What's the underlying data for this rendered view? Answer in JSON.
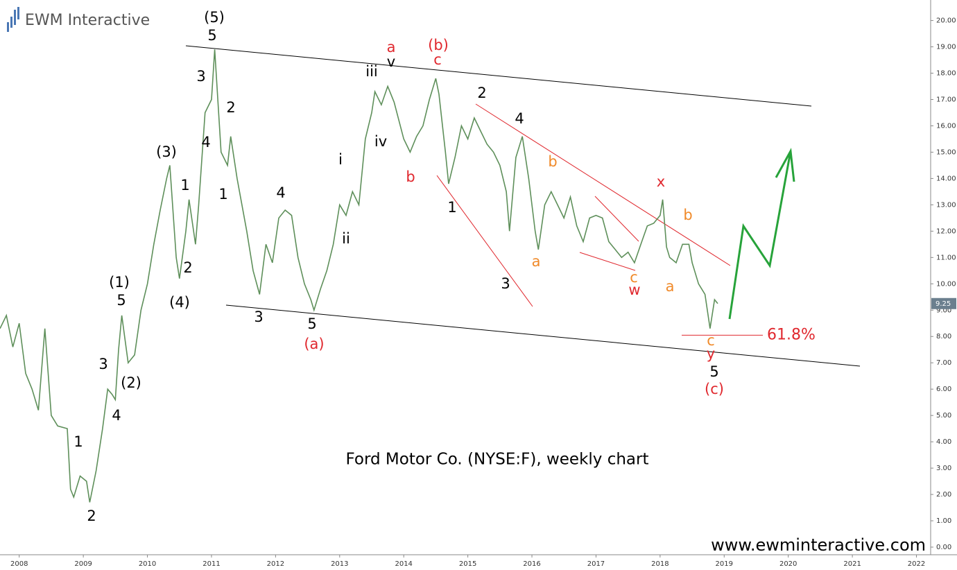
{
  "logo": "EWM Interactive",
  "chart_data": {
    "type": "line",
    "caption": "Ford Motor Co. (NYSE:F), weekly chart",
    "url": "www.ewminteractive.com",
    "x": [
      2007.7,
      2007.8,
      2007.9,
      2008.0,
      2008.1,
      2008.2,
      2008.3,
      2008.4,
      2008.5,
      2008.6,
      2008.75,
      2008.8,
      2008.85,
      2008.95,
      2009.05,
      2009.1,
      2009.2,
      2009.3,
      2009.38,
      2009.45,
      2009.5,
      2009.55,
      2009.6,
      2009.7,
      2009.8,
      2009.9,
      2010.0,
      2010.1,
      2010.2,
      2010.3,
      2010.35,
      2010.45,
      2010.5,
      2010.6,
      2010.65,
      2010.75,
      2010.8,
      2010.9,
      2011.0,
      2011.05,
      2011.15,
      2011.25,
      2011.3,
      2011.4,
      2011.55,
      2011.65,
      2011.75,
      2011.85,
      2011.95,
      2012.05,
      2012.15,
      2012.25,
      2012.35,
      2012.45,
      2012.55,
      2012.6,
      2012.7,
      2012.8,
      2012.9,
      2013.0,
      2013.1,
      2013.2,
      2013.3,
      2013.4,
      2013.5,
      2013.55,
      2013.65,
      2013.75,
      2013.85,
      2014.0,
      2014.1,
      2014.2,
      2014.3,
      2014.4,
      2014.5,
      2014.55,
      2014.65,
      2014.7,
      2014.8,
      2014.9,
      2015.0,
      2015.1,
      2015.2,
      2015.3,
      2015.4,
      2015.5,
      2015.6,
      2015.65,
      2015.75,
      2015.85,
      2015.95,
      2016.05,
      2016.1,
      2016.2,
      2016.3,
      2016.4,
      2016.5,
      2016.6,
      2016.7,
      2016.8,
      2016.9,
      2017.0,
      2017.1,
      2017.2,
      2017.3,
      2017.4,
      2017.5,
      2017.6,
      2017.7,
      2017.8,
      2017.9,
      2018.0,
      2018.04,
      2018.1,
      2018.15,
      2018.25,
      2018.35,
      2018.45,
      2018.5,
      2018.6,
      2018.7,
      2018.78,
      2018.85,
      2018.9
    ],
    "series": [
      {
        "name": "F",
        "color": "#5e8f5a",
        "values": [
          8.3,
          8.8,
          7.6,
          8.5,
          6.6,
          6.0,
          5.2,
          8.3,
          5.0,
          4.6,
          4.5,
          2.2,
          1.9,
          2.7,
          2.5,
          1.7,
          2.9,
          4.5,
          6.0,
          5.8,
          5.6,
          7.5,
          8.8,
          7.0,
          7.3,
          9.0,
          10.0,
          11.5,
          12.8,
          14.0,
          14.5,
          11.0,
          10.2,
          12.0,
          13.2,
          11.5,
          13.0,
          16.5,
          17.0,
          18.9,
          15.0,
          14.5,
          15.6,
          14.0,
          12.0,
          10.5,
          9.6,
          11.5,
          10.8,
          12.5,
          12.8,
          12.6,
          11.0,
          10.0,
          9.4,
          9.0,
          9.8,
          10.5,
          11.5,
          13.0,
          12.6,
          13.5,
          13.0,
          15.5,
          16.5,
          17.3,
          16.8,
          17.5,
          16.9,
          15.5,
          15.0,
          15.6,
          16.0,
          17.0,
          17.8,
          17.2,
          15.0,
          13.8,
          14.8,
          16.0,
          15.5,
          16.3,
          15.8,
          15.3,
          15.0,
          14.5,
          13.5,
          12.0,
          14.8,
          15.6,
          14.0,
          12.0,
          11.3,
          13.0,
          13.5,
          13.0,
          12.5,
          13.3,
          12.2,
          11.6,
          12.5,
          12.6,
          12.5,
          11.6,
          11.3,
          11.0,
          11.2,
          10.8,
          11.5,
          12.2,
          12.3,
          12.6,
          13.2,
          11.4,
          11.0,
          10.8,
          11.5,
          11.5,
          10.8,
          10.0,
          9.6,
          8.3,
          9.4,
          9.25
        ]
      }
    ],
    "last_price": 9.25,
    "fib_level": 8.05,
    "fib_label": "61.8%",
    "xlim": [
      2007.7,
      2022.2
    ],
    "xticks": [
      2008,
      2009,
      2010,
      2011,
      2012,
      2013,
      2014,
      2015,
      2016,
      2017,
      2018,
      2019,
      2020,
      2021,
      2022
    ],
    "ylim": [
      0,
      20.7
    ],
    "yticks": [
      {
        "value": 0,
        "label": "0.00"
      },
      {
        "value": 1,
        "label": "1.00"
      },
      {
        "value": 2,
        "label": "2.00"
      },
      {
        "value": 3,
        "label": "3.00"
      },
      {
        "value": 4,
        "label": "4.00"
      },
      {
        "value": 5,
        "label": "5.00"
      },
      {
        "value": 6,
        "label": "6.00"
      },
      {
        "value": 7,
        "label": "7.00"
      },
      {
        "value": 8,
        "label": "8.00"
      },
      {
        "value": 9,
        "label": "9.00"
      },
      {
        "value": 10,
        "label": "10.00"
      },
      {
        "value": 11,
        "label": "11.00"
      },
      {
        "value": 12,
        "label": "12.00"
      },
      {
        "value": 13,
        "label": "13.00"
      },
      {
        "value": 14,
        "label": "14.00"
      },
      {
        "value": 15,
        "label": "15.00"
      },
      {
        "value": 16,
        "label": "16.00"
      },
      {
        "value": 17,
        "label": "17.00"
      },
      {
        "value": 18,
        "label": "18.00"
      },
      {
        "value": 19,
        "label": "19.00"
      },
      {
        "value": 20,
        "label": "20.00"
      }
    ],
    "grid": false,
    "annotations": [
      {
        "text": "(5)",
        "color": "#000000"
      },
      {
        "text": "5",
        "color": "#000000"
      },
      {
        "text": "3",
        "color": "#000000"
      },
      {
        "text": "2",
        "color": "#000000"
      },
      {
        "text": "4",
        "color": "#000000"
      },
      {
        "text": "1",
        "color": "#000000"
      },
      {
        "text": "(3)",
        "color": "#000000"
      },
      {
        "text": "1",
        "color": "#000000"
      },
      {
        "text": "2",
        "color": "#000000"
      },
      {
        "text": "(4)",
        "color": "#000000"
      },
      {
        "text": "(1)",
        "color": "#000000"
      },
      {
        "text": "5",
        "color": "#000000"
      },
      {
        "text": "3",
        "color": "#000000"
      },
      {
        "text": "(2)",
        "color": "#000000"
      },
      {
        "text": "4",
        "color": "#000000"
      },
      {
        "text": "1",
        "color": "#000000"
      },
      {
        "text": "2",
        "color": "#000000"
      },
      {
        "text": "4",
        "color": "#000000"
      },
      {
        "text": "3",
        "color": "#000000"
      },
      {
        "text": "5",
        "color": "#000000"
      },
      {
        "text": "(a)",
        "color": "#e0282e"
      },
      {
        "text": "i",
        "color": "#000000"
      },
      {
        "text": "ii",
        "color": "#000000"
      },
      {
        "text": "iii",
        "color": "#000000"
      },
      {
        "text": "v",
        "color": "#000000"
      },
      {
        "text": "iv",
        "color": "#000000"
      },
      {
        "text": "a",
        "color": "#e0282e"
      },
      {
        "text": "(b)",
        "color": "#e0282e"
      },
      {
        "text": "c",
        "color": "#e0282e"
      },
      {
        "text": "b",
        "color": "#e0282e"
      },
      {
        "text": "1",
        "color": "#000000"
      },
      {
        "text": "2",
        "color": "#000000"
      },
      {
        "text": "4",
        "color": "#000000"
      },
      {
        "text": "3",
        "color": "#000000"
      },
      {
        "text": "b",
        "color": "#f08a2a"
      },
      {
        "text": "a",
        "color": "#f08a2a"
      },
      {
        "text": "c",
        "color": "#f08a2a"
      },
      {
        "text": "w",
        "color": "#e0282e"
      },
      {
        "text": "x",
        "color": "#e0282e"
      },
      {
        "text": "b",
        "color": "#f08a2a"
      },
      {
        "text": "a",
        "color": "#f08a2a"
      },
      {
        "text": "c",
        "color": "#f08a2a"
      },
      {
        "text": "y",
        "color": "#e0282e"
      },
      {
        "text": "5",
        "color": "#000000"
      },
      {
        "text": "(c)",
        "color": "#e0282e"
      }
    ]
  }
}
